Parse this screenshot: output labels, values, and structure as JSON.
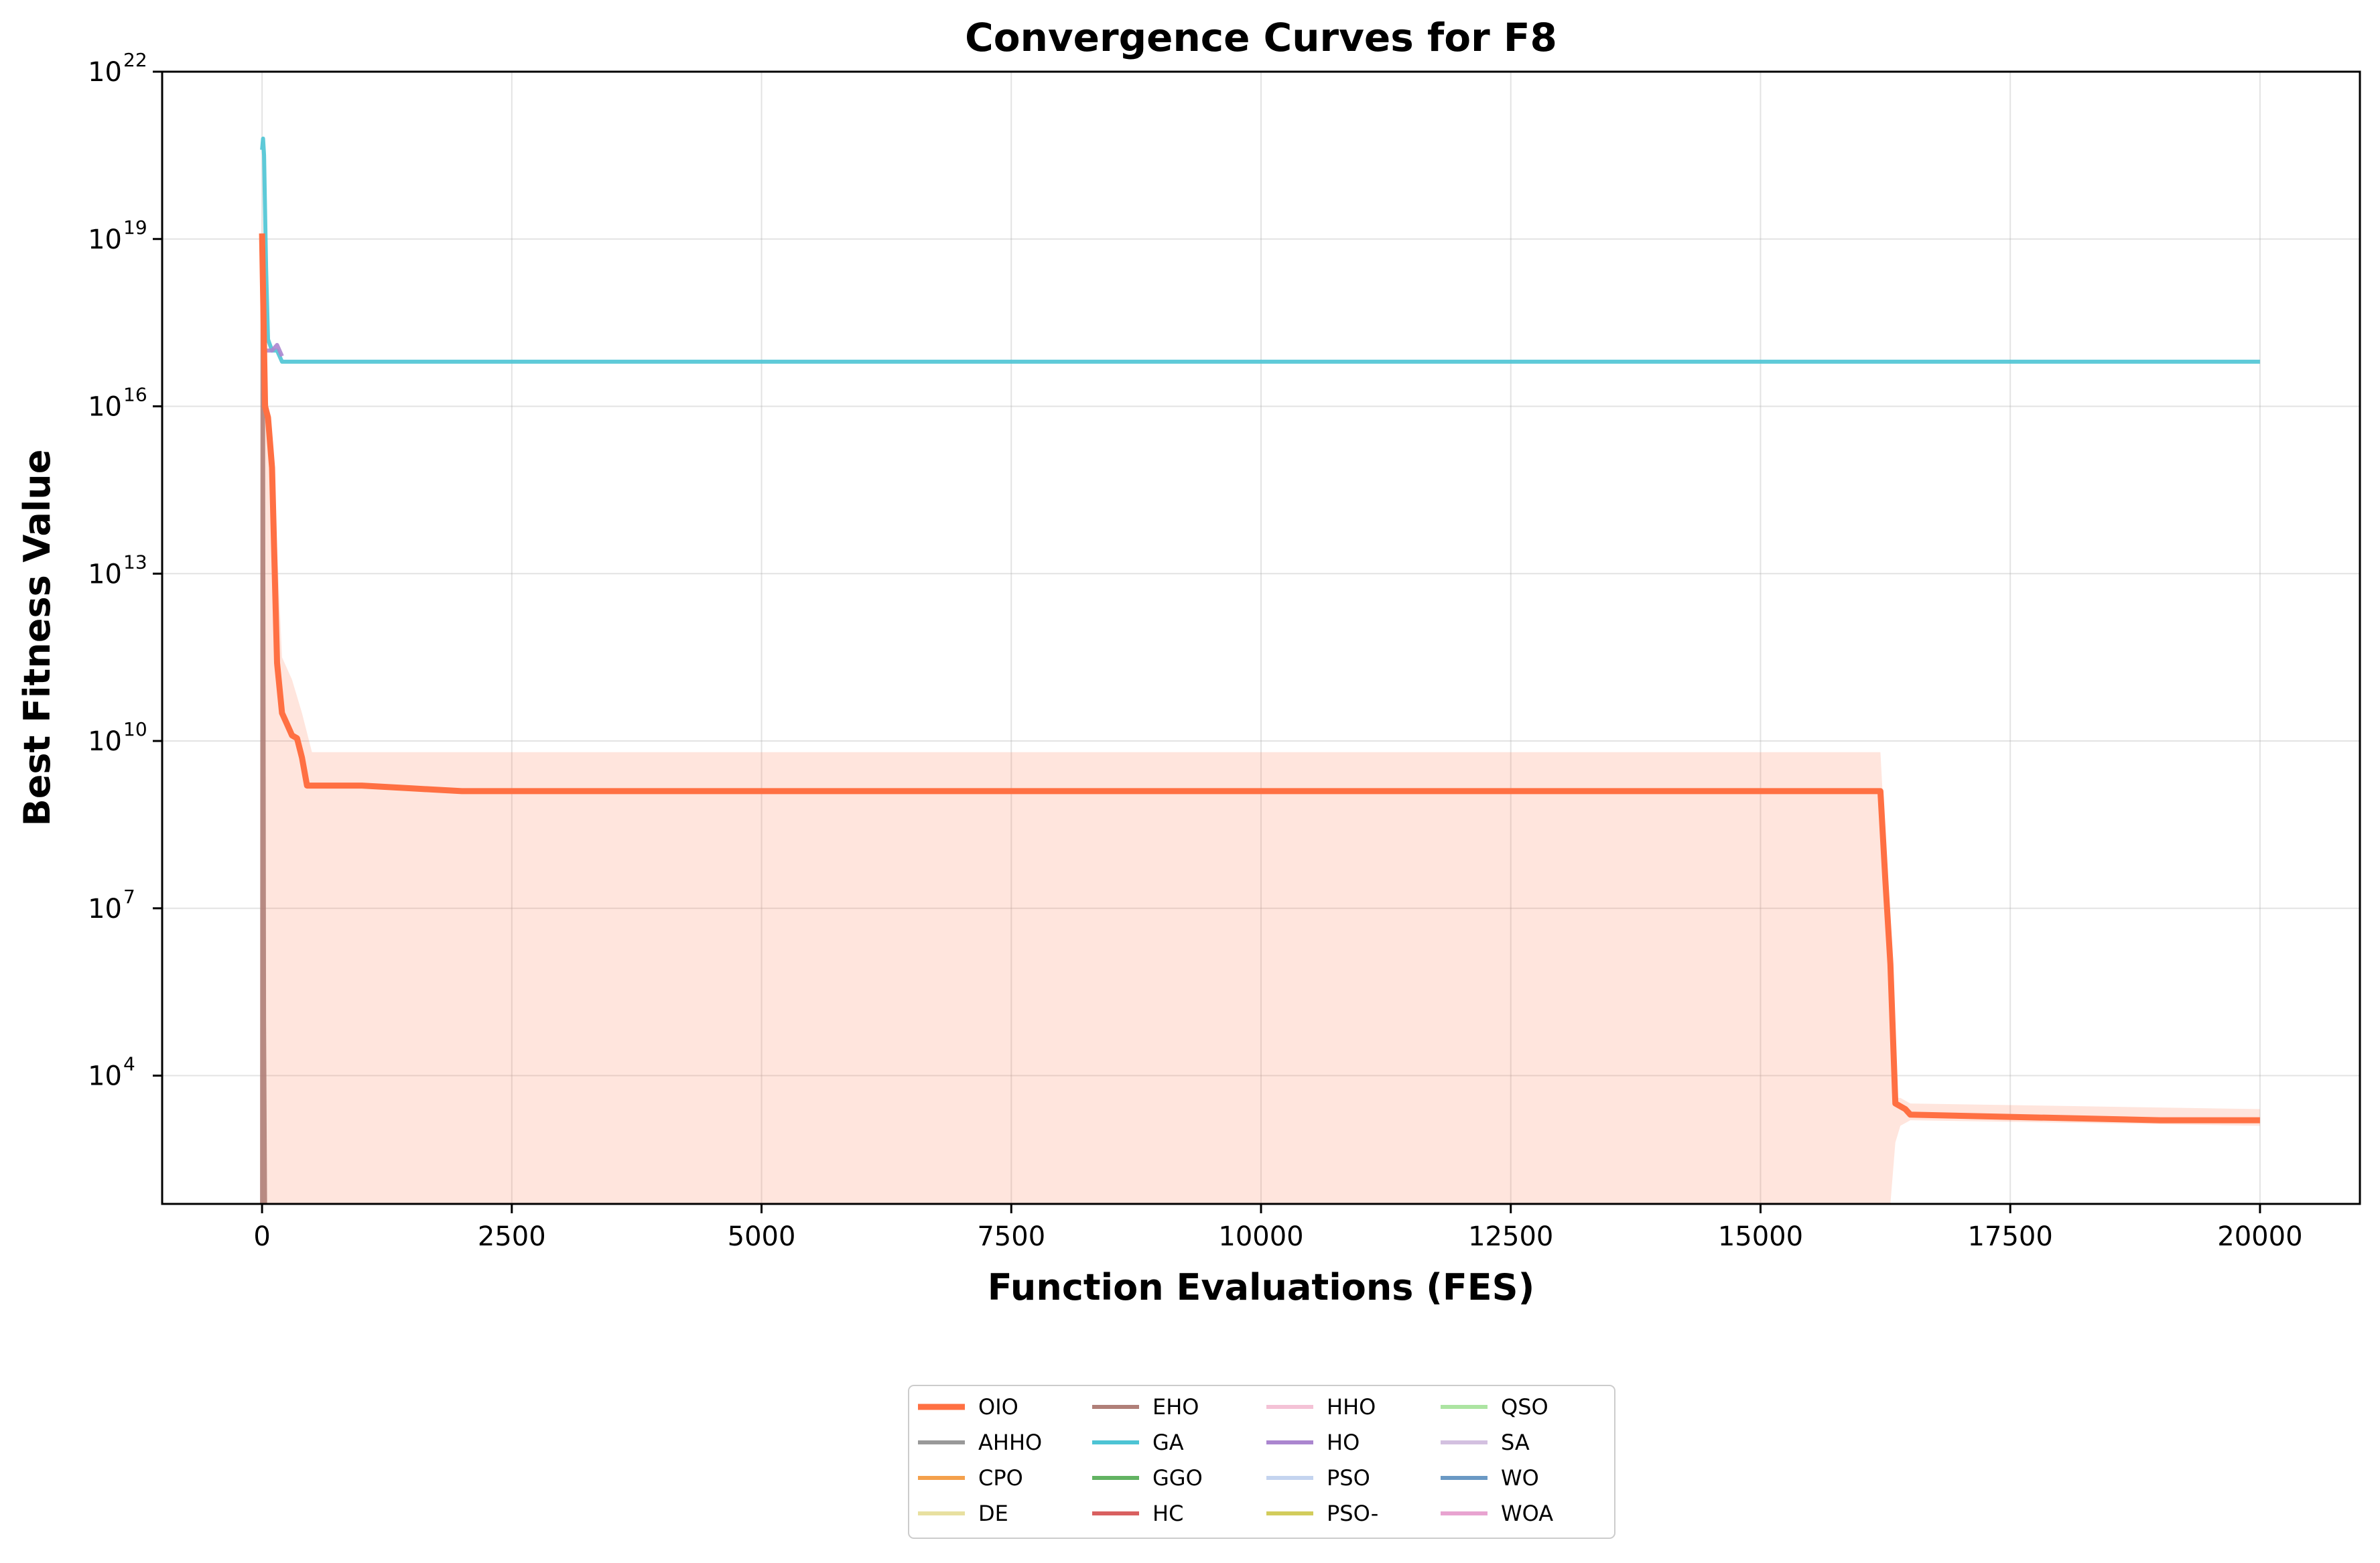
{
  "chart_data": {
    "type": "line",
    "title": "Convergence Curves for F8",
    "xlabel": "Function Evaluations (FES)",
    "ylabel": "Best Fitness Value",
    "xlim": [
      -1000,
      21000
    ],
    "ylim_log10": [
      1.7,
      22.0
    ],
    "yscale": "log",
    "grid": true,
    "legend_placement": "bottom-center",
    "x_ticks": [
      {
        "value": 0,
        "label": "0"
      },
      {
        "value": 2500,
        "label": "2500"
      },
      {
        "value": 5000,
        "label": "5000"
      },
      {
        "value": 7500,
        "label": "7500"
      },
      {
        "value": 10000,
        "label": "10000"
      },
      {
        "value": 12500,
        "label": "12500"
      },
      {
        "value": 15000,
        "label": "15000"
      },
      {
        "value": 17500,
        "label": "17500"
      },
      {
        "value": 20000,
        "label": "20000"
      }
    ],
    "y_ticks": [
      {
        "exp": 22,
        "base": "10",
        "sup": "22"
      },
      {
        "exp": 19,
        "base": "10",
        "sup": "19"
      },
      {
        "exp": 16,
        "base": "10",
        "sup": "16"
      },
      {
        "exp": 13,
        "base": "10",
        "sup": "13"
      },
      {
        "exp": 10,
        "base": "10",
        "sup": "10"
      },
      {
        "exp": 7,
        "base": "10",
        "sup": "7"
      },
      {
        "exp": 4,
        "base": "10",
        "sup": "4"
      }
    ],
    "series": [
      {
        "name": "OIO",
        "color": "#ff7043",
        "highlight": true,
        "x": [
          0,
          30,
          60,
          100,
          150,
          200,
          250,
          300,
          350,
          400,
          450,
          1000,
          1500,
          2000,
          16200,
          16250,
          16300,
          16350,
          16450,
          16500,
          19000,
          20000
        ],
        "y_log10": [
          19.1,
          16.0,
          15.8,
          14.9,
          11.4,
          10.5,
          10.3,
          10.1,
          10.05,
          9.7,
          9.2,
          9.2,
          9.15,
          9.1,
          9.1,
          7.5,
          6.0,
          3.5,
          3.4,
          3.3,
          3.2,
          3.2
        ],
        "band": {
          "x": [
            0,
            30,
            100,
            200,
            300,
            400,
            500,
            16200,
            16300,
            16350,
            16400,
            16500,
            20000
          ],
          "upper_log10": [
            19.5,
            16.5,
            15.5,
            11.5,
            11.1,
            10.5,
            9.8,
            9.8,
            6.5,
            3.6,
            3.6,
            3.5,
            3.4
          ],
          "lower_log10": [
            1.7,
            1.7,
            1.7,
            1.7,
            1.7,
            1.7,
            1.7,
            1.7,
            1.7,
            2.8,
            3.1,
            3.2,
            3.1
          ]
        }
      },
      {
        "name": "AHHO",
        "color": "#999999"
      },
      {
        "name": "CPO",
        "color": "#f4a04c"
      },
      {
        "name": "DE",
        "color": "#e8e0a0"
      },
      {
        "name": "EHO",
        "color": "#b07f78",
        "x": [
          0,
          5,
          10,
          20,
          30
        ],
        "y_log10": [
          1.7,
          18.0,
          16.0,
          5.0,
          1.7
        ]
      },
      {
        "name": "GA",
        "color": "#4dc4d4",
        "x": [
          0,
          10,
          20,
          40,
          60,
          100,
          150,
          200,
          20000
        ],
        "y_log10": [
          20.6,
          20.8,
          20.5,
          18.5,
          17.2,
          17.0,
          17.0,
          16.8,
          16.8
        ]
      },
      {
        "name": "GGO",
        "color": "#62b362"
      },
      {
        "name": "HC",
        "color": "#d96060"
      },
      {
        "name": "HHO",
        "color": "#f4c2d6"
      },
      {
        "name": "HO",
        "color": "#ab86cf",
        "x": [
          0,
          100,
          150,
          200
        ],
        "y_log10": [
          17.0,
          17.0,
          17.1,
          16.9
        ]
      },
      {
        "name": "PSO",
        "color": "#c4d4ef"
      },
      {
        "name": "PSO-",
        "color": "#d2cc5c"
      },
      {
        "name": "QSO",
        "color": "#ace4a2"
      },
      {
        "name": "SA",
        "color": "#d3c0e0"
      },
      {
        "name": "WO",
        "color": "#6a99c4"
      },
      {
        "name": "WOA",
        "color": "#e8a3d0"
      }
    ]
  }
}
